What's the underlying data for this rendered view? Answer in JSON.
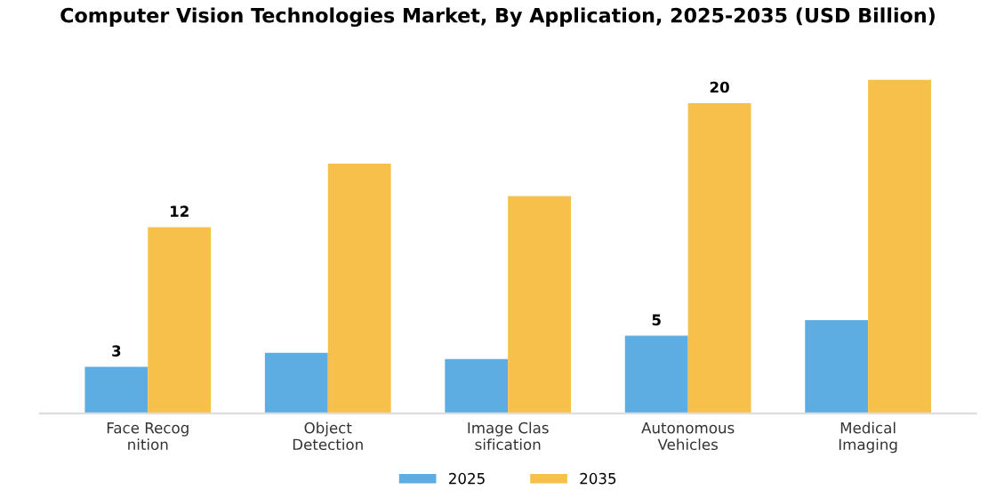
{
  "chart_data": {
    "type": "bar",
    "title": "Computer Vision Technologies Market, By Application, 2025-2035 (USD Billion)",
    "categories": [
      "Face Recog\nnition",
      "Object\nDetection",
      "Image Clas\nsification",
      "Autonomous\nVehicles",
      "Medical\nImaging"
    ],
    "series": [
      {
        "name": "2025",
        "color": "#5dade2",
        "values": [
          3,
          3.9,
          3.5,
          5,
          6.0
        ],
        "value_labels": [
          "3",
          null,
          null,
          "5",
          null
        ]
      },
      {
        "name": "2035",
        "color": "#f7c04a",
        "values": [
          12,
          16.1,
          14.0,
          20,
          21.5
        ],
        "value_labels": [
          "12",
          null,
          null,
          "20",
          null
        ]
      }
    ],
    "legend": "bottom",
    "grid": false
  }
}
